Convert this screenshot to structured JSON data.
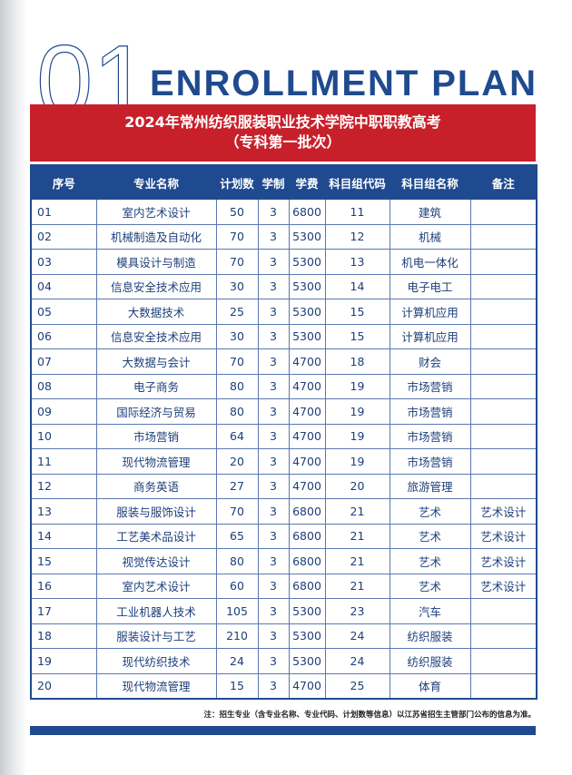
{
  "header": {
    "number": "01",
    "title": "ENROLLMENT PLAN",
    "banner_line1": "2024年常州纺织服装职业技术学院中职职教高考",
    "banner_line2": "（专科第一批次）"
  },
  "table": {
    "columns": [
      "序号",
      "专业名称",
      "计划数",
      "学制",
      "学费",
      "科目组代码",
      "科目组名称",
      "备注"
    ],
    "rows": [
      [
        "01",
        "室内艺术设计",
        "50",
        "3",
        "6800",
        "11",
        "建筑"
      ],
      [
        "02",
        "机械制造及自动化",
        "70",
        "3",
        "5300",
        "12",
        "机械"
      ],
      [
        "03",
        "模具设计与制造",
        "70",
        "3",
        "5300",
        "13",
        "机电一体化"
      ],
      [
        "04",
        "信息安全技术应用",
        "30",
        "3",
        "5300",
        "14",
        "电子电工"
      ],
      [
        "05",
        "大数据技术",
        "25",
        "3",
        "5300",
        "15",
        "计算机应用"
      ],
      [
        "06",
        "信息安全技术应用",
        "30",
        "3",
        "5300",
        "15",
        "计算机应用"
      ],
      [
        "07",
        "大数据与会计",
        "70",
        "3",
        "4700",
        "18",
        "财会"
      ],
      [
        "08",
        "电子商务",
        "80",
        "3",
        "4700",
        "19",
        "市场营销"
      ],
      [
        "09",
        "国际经济与贸易",
        "80",
        "3",
        "4700",
        "19",
        "市场营销"
      ],
      [
        "10",
        "市场营销",
        "64",
        "3",
        "4700",
        "19",
        "市场营销"
      ],
      [
        "11",
        "现代物流管理",
        "20",
        "3",
        "4700",
        "19",
        "市场营销"
      ],
      [
        "12",
        "商务英语",
        "27",
        "3",
        "4700",
        "20",
        "旅游管理"
      ],
      [
        "13",
        "服装与服饰设计",
        "70",
        "3",
        "6800",
        "21",
        "艺术",
        "艺术设计"
      ],
      [
        "14",
        "工艺美术品设计",
        "65",
        "3",
        "6800",
        "21",
        "艺术",
        "艺术设计"
      ],
      [
        "15",
        "视觉传达设计",
        "80",
        "3",
        "6800",
        "21",
        "艺术",
        "艺术设计"
      ],
      [
        "16",
        "室内艺术设计",
        "60",
        "3",
        "6800",
        "21",
        "艺术",
        "艺术设计"
      ],
      [
        "17",
        "工业机器人技术",
        "105",
        "3",
        "5300",
        "23",
        "汽车"
      ],
      [
        "18",
        "服装设计与工艺",
        "210",
        "3",
        "5300",
        "24",
        "纺织服装"
      ],
      [
        "19",
        "现代纺织技术",
        "24",
        "3",
        "5300",
        "24",
        "纺织服装"
      ],
      [
        "20",
        "现代物流管理",
        "15",
        "3",
        "4700",
        "25",
        "体育"
      ]
    ]
  },
  "footer": {
    "note": "注：招生专业（含专业名称、专业代码、计划数等信息）以江苏省招生主管部门公布的信息为准。"
  }
}
